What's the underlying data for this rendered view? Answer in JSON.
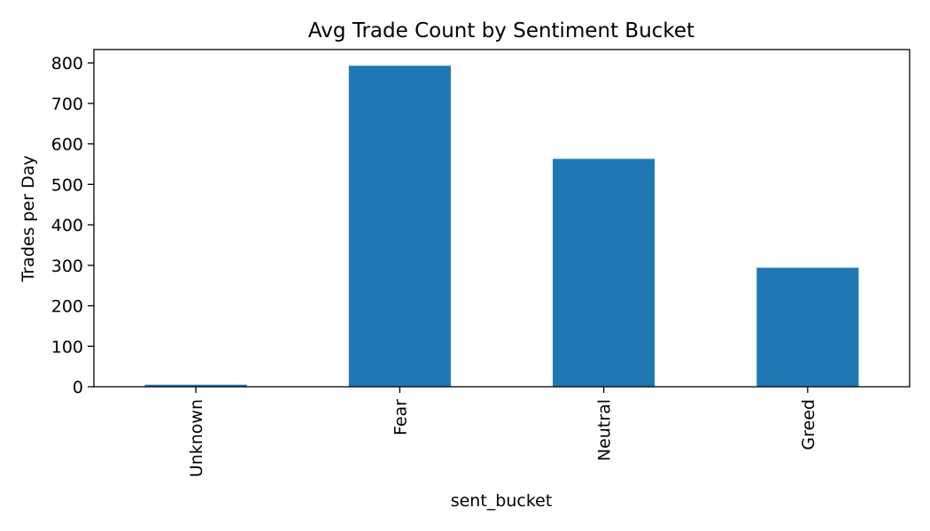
{
  "chart_data": {
    "type": "bar",
    "title": "Avg Trade Count by Sentiment Bucket",
    "xlabel": "sent_bucket",
    "ylabel": "Trades per Day",
    "categories": [
      "Unknown",
      "Fear",
      "Neutral",
      "Greed"
    ],
    "values": [
      5,
      793,
      563,
      294
    ],
    "ylim": [
      0,
      833
    ],
    "yticks": [
      0,
      100,
      200,
      300,
      400,
      500,
      600,
      700,
      800
    ],
    "grid": false,
    "legend": "none",
    "bar_color": "#1f77b4"
  }
}
